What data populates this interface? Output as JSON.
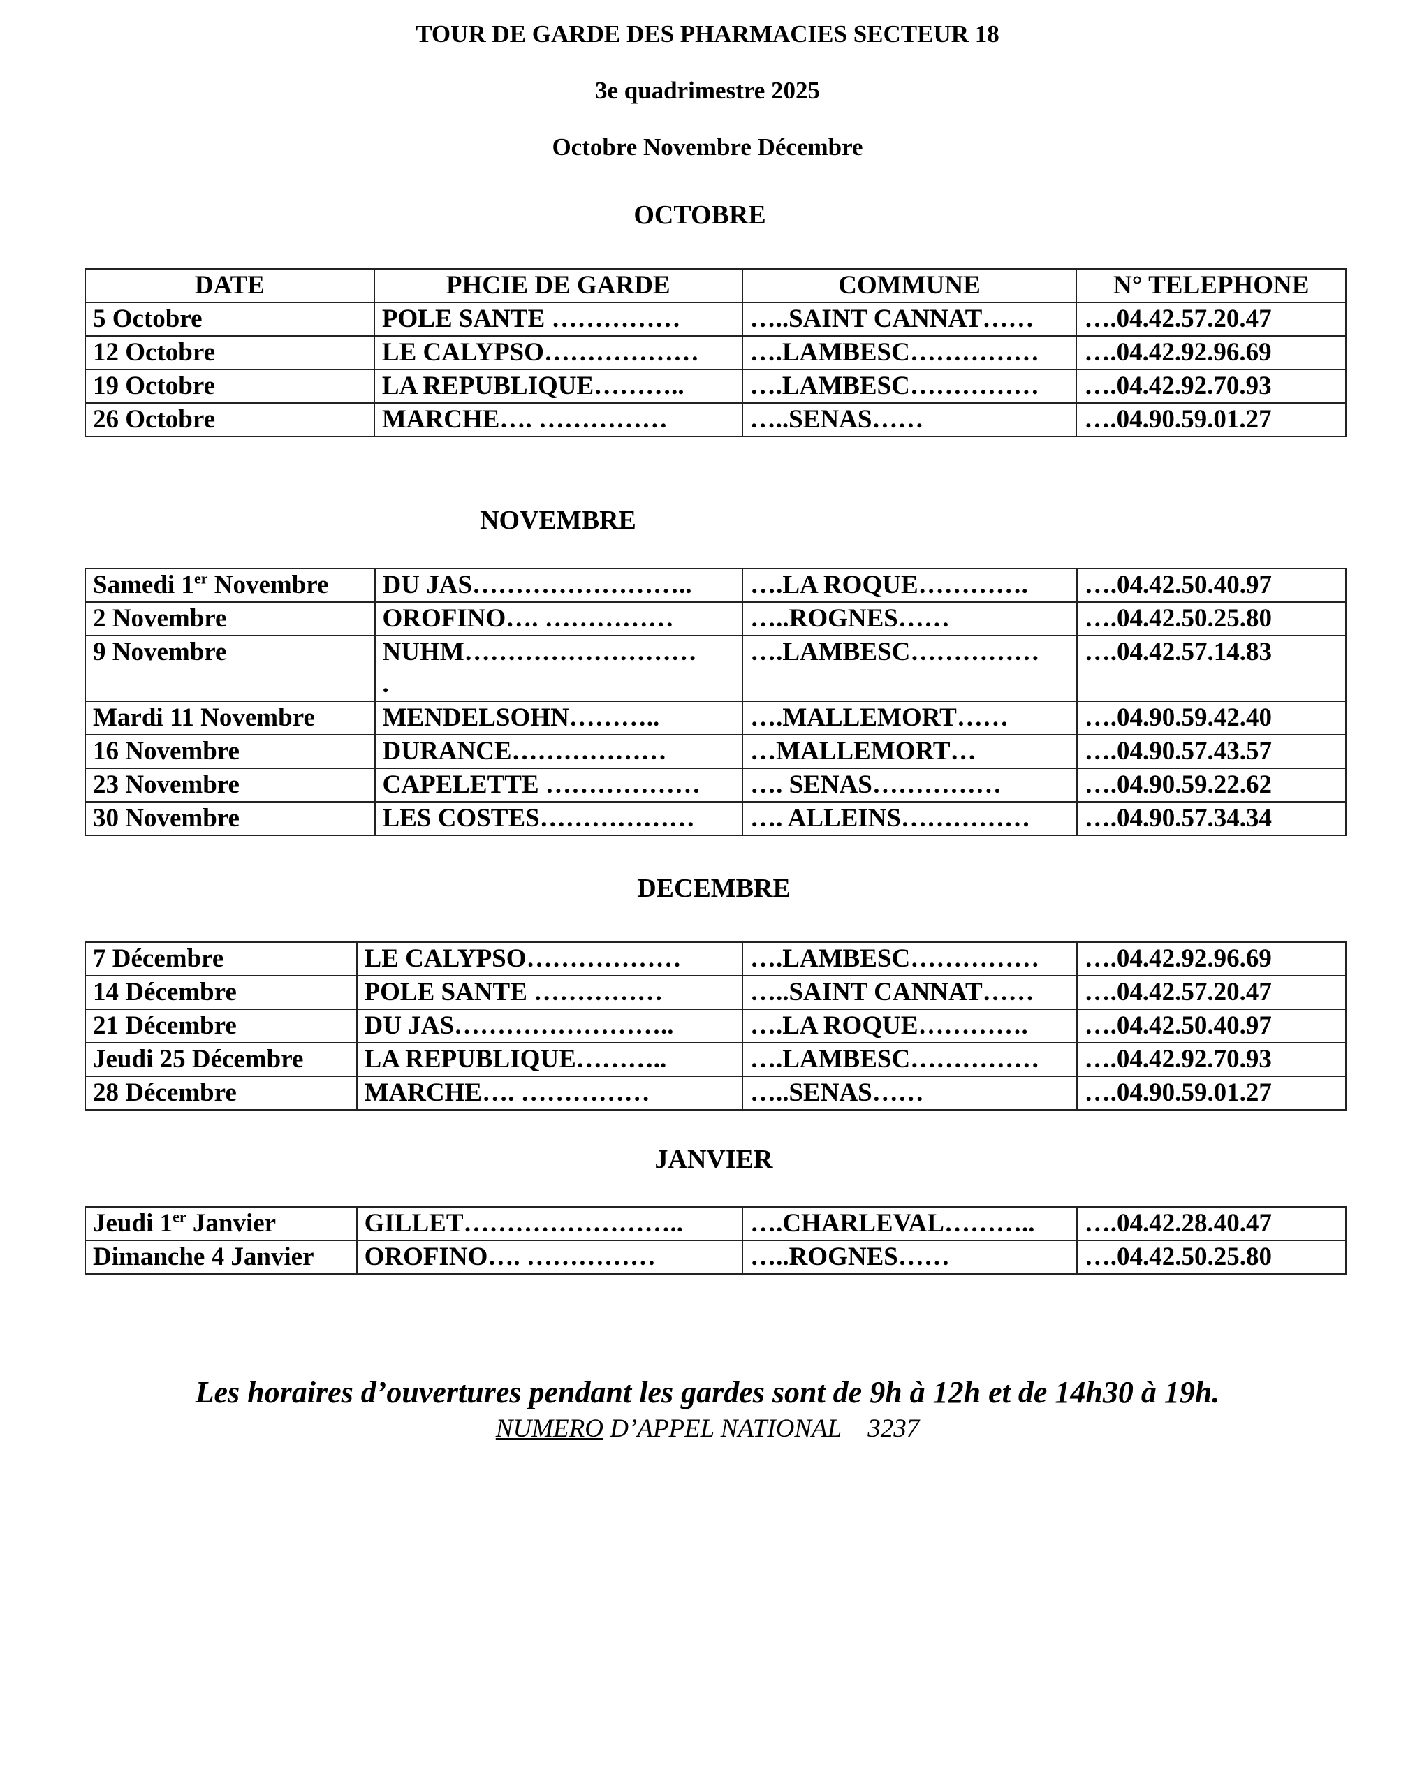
{
  "header": {
    "title": "TOUR DE GARDE DES PHARMACIES SECTEUR 18",
    "subtitle": "3e quadrimestre 2025",
    "months_line": "Octobre Novembre Décembre"
  },
  "columns": [
    "DATE",
    "PHCIE DE GARDE",
    "COMMUNE",
    "N° TELEPHONE"
  ],
  "sections": [
    {
      "heading": "OCTOBRE",
      "rows": [
        [
          "5 Octobre",
          "POLE SANTE ……………",
          "…..SAINT CANNAT……",
          "….04.42.57.20.47"
        ],
        [
          "12 Octobre",
          "LE CALYPSO………………",
          "….LAMBESC……………",
          "….04.42.92.96.69"
        ],
        [
          "19 Octobre",
          "LA REPUBLIQUE………..",
          "….LAMBESC……………",
          "….04.42.92.70.93"
        ],
        [
          "26 Octobre",
          "MARCHE…. ……………",
          "…..SENAS……",
          "….04.90.59.01.27"
        ]
      ]
    },
    {
      "heading": "NOVEMBRE",
      "rows": [
        [
          "Samedi 1er Novembre",
          "DU JAS……………………..",
          "….LA ROQUE………….",
          "….04.42.50.40.97"
        ],
        [
          "2 Novembre",
          "OROFINO…. ……………",
          "…..ROGNES……",
          "….04.42.50.25.80"
        ],
        [
          "9 Novembre",
          "NUHM……………………… .",
          "….LAMBESC……………",
          "….04.42.57.14.83"
        ],
        [
          "Mardi 11 Novembre",
          "MENDELSOHN………..",
          "….MALLEMORT……",
          "….04.90.59.42.40"
        ],
        [
          "16 Novembre",
          "DURANCE………………",
          "…MALLEMORT…",
          "….04.90.57.43.57"
        ],
        [
          "23 Novembre",
          "CAPELETTE ………………",
          "…. SENAS……………",
          "….04.90.59.22.62"
        ],
        [
          "30 Novembre",
          "LES COSTES………………",
          "…. ALLEINS……………",
          "….04.90.57.34.34"
        ]
      ]
    },
    {
      "heading": "DECEMBRE",
      "rows": [
        [
          "7 Décembre",
          "LE CALYPSO………………",
          "….LAMBESC……………",
          "….04.42.92.96.69"
        ],
        [
          "14 Décembre",
          "POLE SANTE ……………",
          "…..SAINT CANNAT……",
          "….04.42.57.20.47"
        ],
        [
          "21 Décembre",
          "DU JAS……………………..",
          "….LA ROQUE………….",
          "….04.42.50.40.97"
        ],
        [
          "Jeudi 25 Décembre",
          "LA REPUBLIQUE………..",
          "….LAMBESC……………",
          "….04.42.92.70.93"
        ],
        [
          "28 Décembre",
          "MARCHE…. ……………",
          "…..SENAS……",
          "….04.90.59.01.27"
        ]
      ]
    },
    {
      "heading": "JANVIER",
      "rows": [
        [
          "Jeudi 1er Janvier",
          "GILLET……………………..",
          "….CHARLEVAL………..",
          "….04.42.28.40.47"
        ],
        [
          "Dimanche 4 Janvier",
          "OROFINO…. ……………",
          "…..ROGNES……",
          "….04.42.50.25.80"
        ]
      ]
    }
  ],
  "footer": {
    "hours": "Les horaires d’ouvertures pendant les gardes sont de 9h à 12h et de 14h30 à 19h.",
    "national_label": "NUMERO",
    "national_rest": " D’APPEL NATIONAL",
    "national_number": "3237"
  }
}
